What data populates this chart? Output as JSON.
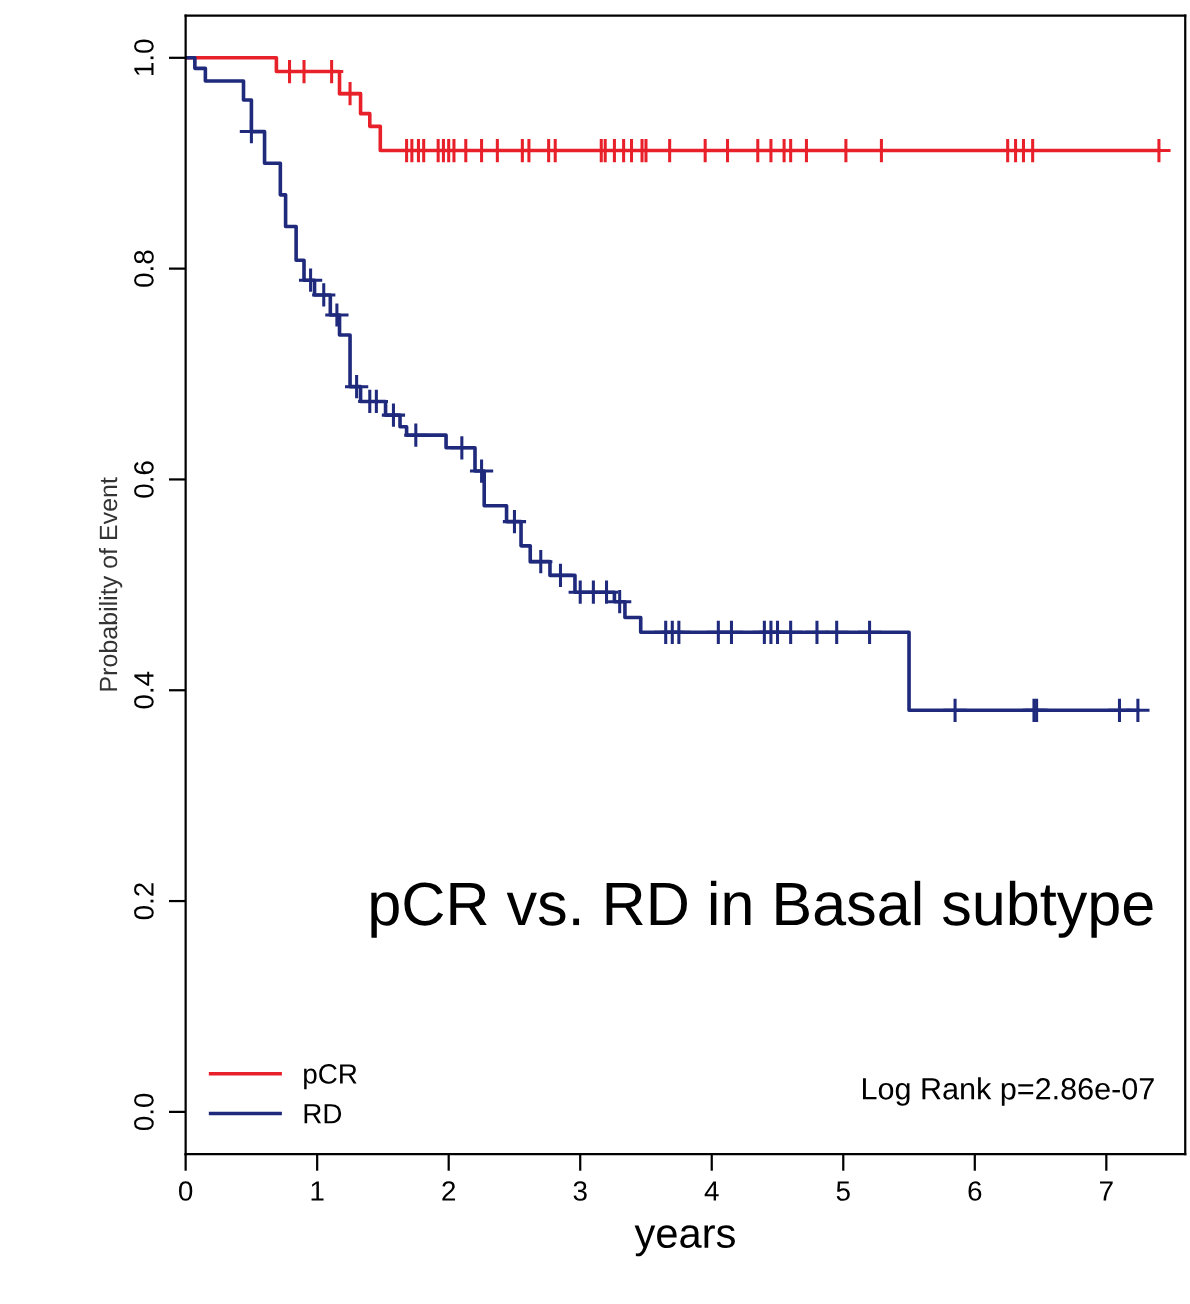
{
  "chart_data": {
    "type": "step",
    "xlabel": "years",
    "ylabel": "Probability of Event",
    "xlim": [
      0,
      7.6
    ],
    "ylim": [
      -0.04,
      1.04
    ],
    "xticks": [
      0,
      1,
      2,
      3,
      4,
      5,
      6,
      7
    ],
    "yticks": [
      {
        "value": 0,
        "label": "0.0"
      },
      {
        "value": 0.2,
        "label": "0.2"
      },
      {
        "value": 0.4,
        "label": "0.4"
      },
      {
        "value": 0.6,
        "label": "0.6"
      },
      {
        "value": 0.8,
        "label": "0.8"
      },
      {
        "value": 1,
        "label": "1.0"
      }
    ],
    "grid": false,
    "legend": "bottom left",
    "marker": "none",
    "line_style": "solid",
    "series": [
      {
        "name": "pCR",
        "color": "#e8202a",
        "x": [
          0,
          0.69,
          1.17,
          1.33,
          1.4,
          1.48,
          7.4
        ],
        "values": [
          1,
          0.987,
          0.966,
          0.947,
          0.935,
          0.912,
          0.912
        ]
      },
      {
        "name": "RD",
        "color": "#1f2a7c",
        "x": [
          0,
          0.07,
          0.15,
          0.44,
          0.5,
          0.6,
          0.72,
          0.76,
          0.84,
          0.9,
          0.98,
          1.1,
          1.17,
          1.25,
          1.33,
          1.52,
          1.63,
          1.68,
          1.98,
          2.2,
          2.27,
          2.44,
          2.55,
          2.62,
          2.77,
          2.96,
          3.26,
          3.34,
          3.46,
          5.5,
          7.24
        ],
        "values": [
          1,
          0.99,
          0.978,
          0.96,
          0.93,
          0.9,
          0.87,
          0.84,
          0.808,
          0.789,
          0.775,
          0.756,
          0.737,
          0.688,
          0.674,
          0.661,
          0.65,
          0.642,
          0.63,
          0.608,
          0.575,
          0.56,
          0.537,
          0.522,
          0.509,
          0.493,
          0.484,
          0.469,
          0.455,
          0.381,
          0.381
        ]
      },
      {
        "type": "scatter",
        "marker": "cross",
        "color": "#e8202a",
        "x": [
          0.79,
          0.9,
          1.11,
          1.25,
          1.68,
          1.72,
          1.77,
          1.81,
          1.92,
          1.96,
          2.0,
          2.04,
          2.13,
          2.25,
          2.37,
          2.56,
          2.61,
          2.76,
          2.81,
          3.16,
          3.19,
          3.26,
          3.33,
          3.39,
          3.47,
          3.5,
          3.68,
          3.95,
          4.12,
          4.35,
          4.45,
          4.55,
          4.6,
          4.72,
          5.02,
          5.29,
          6.25,
          6.31,
          6.37,
          6.44,
          7.4
        ],
        "values": [
          0.987,
          0.987,
          0.987,
          0.966,
          0.912,
          0.912,
          0.912,
          0.912,
          0.912,
          0.912,
          0.912,
          0.912,
          0.912,
          0.912,
          0.912,
          0.912,
          0.912,
          0.912,
          0.912,
          0.912,
          0.912,
          0.912,
          0.912,
          0.912,
          0.912,
          0.912,
          0.912,
          0.912,
          0.912,
          0.912,
          0.912,
          0.912,
          0.912,
          0.912,
          0.912,
          0.912,
          0.912,
          0.912,
          0.912,
          0.912,
          0.912
        ]
      },
      {
        "type": "scatter",
        "marker": "cross",
        "color": "#1f2a7c",
        "x": [
          0.5,
          0.95,
          1.05,
          1.15,
          1.3,
          1.4,
          1.45,
          1.58,
          1.75,
          2.1,
          2.25,
          2.5,
          2.7,
          2.85,
          3.0,
          3.1,
          3.2,
          3.3,
          3.65,
          3.7,
          3.75,
          4.05,
          4.15,
          4.4,
          4.45,
          4.5,
          4.6,
          4.8,
          4.95,
          5.2,
          5.85,
          6.45,
          6.47,
          7.1,
          7.24
        ],
        "values": [
          0.93,
          0.789,
          0.775,
          0.756,
          0.688,
          0.674,
          0.674,
          0.661,
          0.642,
          0.63,
          0.608,
          0.56,
          0.522,
          0.509,
          0.493,
          0.493,
          0.493,
          0.484,
          0.455,
          0.455,
          0.455,
          0.455,
          0.455,
          0.455,
          0.455,
          0.455,
          0.455,
          0.455,
          0.455,
          0.455,
          0.381,
          0.381,
          0.381,
          0.381,
          0.381
        ]
      }
    ],
    "title": "pCR vs. RD in Basal subtype",
    "annotations": [
      "Log Rank p=2.86e-07"
    ]
  }
}
